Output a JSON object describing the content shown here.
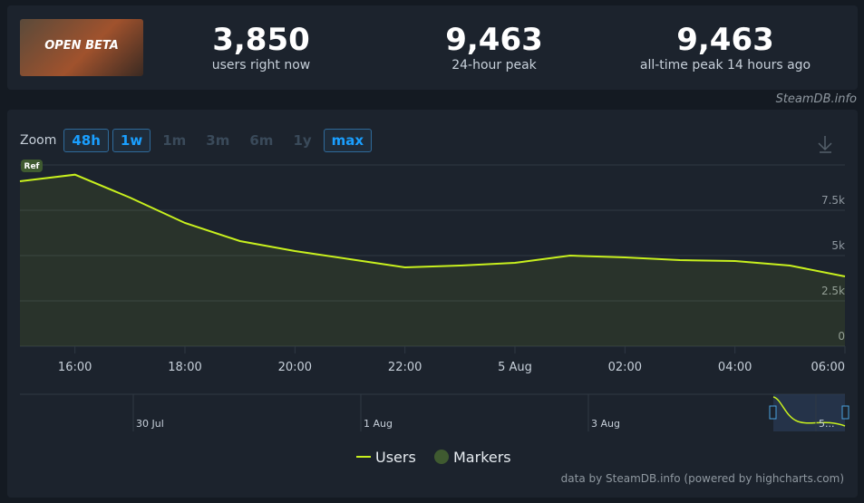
{
  "header": {
    "image_text": "OPEN BETA",
    "stats": [
      {
        "value": "3,850",
        "label": "users right now"
      },
      {
        "value": "9,463",
        "label": "24-hour peak"
      },
      {
        "value": "9,463",
        "label": "all-time peak 14 hours ago"
      }
    ],
    "source": "SteamDB.info"
  },
  "zoom": {
    "label": "Zoom",
    "options": [
      "48h",
      "1w",
      "1m",
      "3m",
      "6m",
      "1y",
      "max"
    ],
    "enabled": [
      true,
      true,
      false,
      false,
      false,
      false,
      true
    ]
  },
  "chart_data": {
    "type": "line",
    "categories": [
      null,
      "16:00",
      null,
      "18:00",
      null,
      "20:00",
      null,
      "22:00",
      null,
      "5 Aug",
      null,
      "02:00",
      null,
      "04:00",
      null,
      "06:00"
    ],
    "series": [
      {
        "name": "Users",
        "color": "#c8f01e",
        "values": [
          9100,
          9463,
          8200,
          6800,
          5800,
          5250,
          4800,
          4350,
          4450,
          4600,
          5000,
          4900,
          4750,
          4700,
          4450,
          3850
        ]
      }
    ],
    "markers": {
      "name": "Markers",
      "color": "#3f5a30",
      "label": "Ref"
    },
    "ylim": [
      0,
      10000
    ],
    "yticks": [
      {
        "value": 0,
        "label": "0"
      },
      {
        "value": 2500,
        "label": "2.5k"
      },
      {
        "value": 5000,
        "label": "5k"
      },
      {
        "value": 7500,
        "label": "7.5k"
      }
    ],
    "grid": true,
    "navigator_labels": [
      "30 Jul",
      "1 Aug",
      "3 Aug",
      "5..."
    ],
    "credits": "data by SteamDB.info (powered by highcharts.com)"
  }
}
